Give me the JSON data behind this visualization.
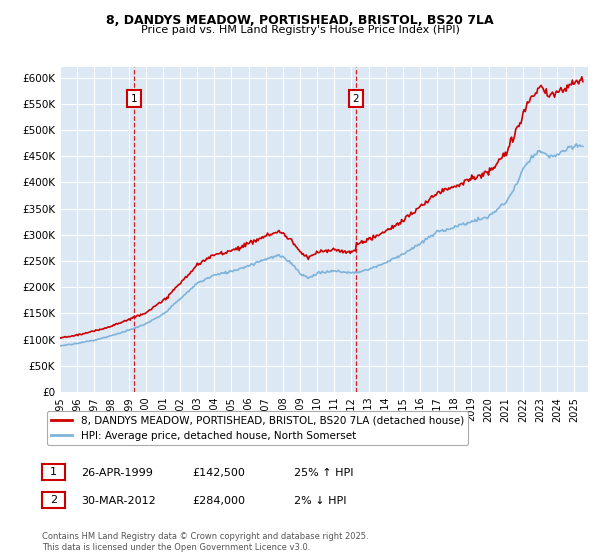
{
  "title": "8, DANDYS MEADOW, PORTISHEAD, BRISTOL, BS20 7LA",
  "subtitle": "Price paid vs. HM Land Registry's House Price Index (HPI)",
  "ylim": [
    0,
    620000
  ],
  "yticks": [
    0,
    50000,
    100000,
    150000,
    200000,
    250000,
    300000,
    350000,
    400000,
    450000,
    500000,
    550000,
    600000
  ],
  "ytick_labels": [
    "£0",
    "£50K",
    "£100K",
    "£150K",
    "£200K",
    "£250K",
    "£300K",
    "£350K",
    "£400K",
    "£450K",
    "£500K",
    "£550K",
    "£600K"
  ],
  "bg_color": "#dce9f5",
  "line_color_red": "#cc0000",
  "line_color_blue": "#7fb3d9",
  "legend_label_red": "8, DANDYS MEADOW, PORTISHEAD, BRISTOL, BS20 7LA (detached house)",
  "legend_label_blue": "HPI: Average price, detached house, North Somerset",
  "sale1_date": "26-APR-1999",
  "sale1_price": "£142,500",
  "sale1_hpi": "25% ↑ HPI",
  "sale1_x": 1999.32,
  "sale1_y": 142500,
  "sale2_date": "30-MAR-2012",
  "sale2_price": "£284,000",
  "sale2_hpi": "2% ↓ HPI",
  "sale2_x": 2012.25,
  "sale2_y": 284000,
  "footnote": "Contains HM Land Registry data © Crown copyright and database right 2025.\nThis data is licensed under the Open Government Licence v3.0.",
  "xmin": 1995.0,
  "xmax": 2025.8
}
